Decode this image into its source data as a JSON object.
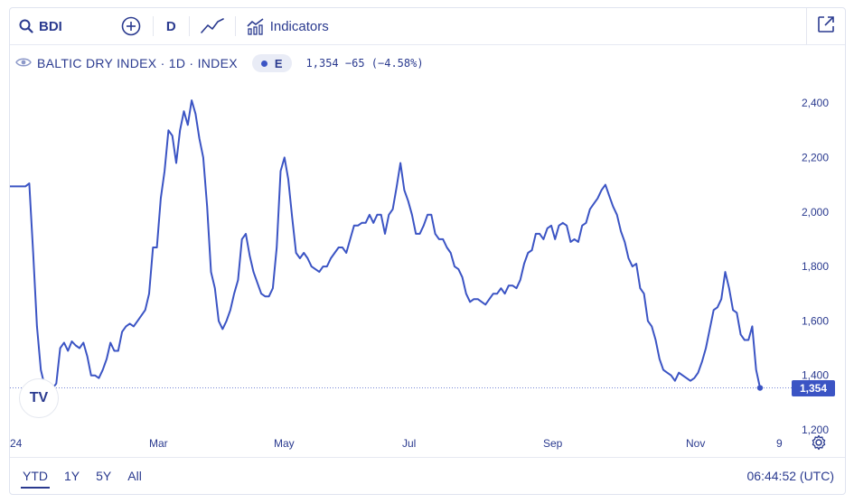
{
  "toolbar": {
    "symbol": "BDI",
    "interval": "D",
    "indicators_label": "Indicators"
  },
  "legend": {
    "title": "BALTIC DRY INDEX · 1D · INDEX",
    "exchange_badge": "E",
    "quote": "1,354 −65 (−4.58%)"
  },
  "price_tag": "1,354",
  "logo_text": "TV",
  "bottom": {
    "ranges": [
      "YTD",
      "1Y",
      "5Y",
      "All"
    ],
    "active_range": "YTD",
    "clock": "06:44:52 (UTC)"
  },
  "colors": {
    "line": "#3b54c4",
    "text": "#2a3a8f"
  },
  "chart_data": {
    "type": "line",
    "series_name": "BALTIC DRY INDEX",
    "x_ticks": [
      "24",
      "Mar",
      "May",
      "Jul",
      "Sep",
      "Nov",
      "9"
    ],
    "y_ticks": [
      1200,
      1400,
      1600,
      1800,
      2000,
      2200,
      2400
    ],
    "y_tick_labels": [
      "1,200",
      "1,400",
      "1,600",
      "1,800",
      "2,000",
      "2,200",
      "2,400"
    ],
    "ylim": [
      1190,
      2490
    ],
    "last_value": 1354,
    "values": [
      2094,
      2094,
      2094,
      2094,
      2094,
      2105,
      1850,
      1580,
      1420,
      1360,
      1340,
      1352,
      1370,
      1500,
      1520,
      1490,
      1525,
      1510,
      1500,
      1520,
      1470,
      1400,
      1400,
      1390,
      1420,
      1460,
      1520,
      1490,
      1490,
      1560,
      1580,
      1590,
      1580,
      1600,
      1620,
      1640,
      1700,
      1870,
      1870,
      2050,
      2150,
      2300,
      2280,
      2180,
      2300,
      2370,
      2320,
      2410,
      2360,
      2270,
      2200,
      2020,
      1780,
      1720,
      1600,
      1570,
      1600,
      1640,
      1700,
      1750,
      1900,
      1920,
      1840,
      1780,
      1740,
      1700,
      1690,
      1690,
      1720,
      1870,
      2150,
      2200,
      2120,
      1980,
      1850,
      1830,
      1850,
      1830,
      1800,
      1790,
      1780,
      1800,
      1800,
      1830,
      1850,
      1870,
      1870,
      1850,
      1900,
      1950,
      1950,
      1960,
      1960,
      1990,
      1960,
      1990,
      1990,
      1920,
      1990,
      2010,
      2090,
      2180,
      2080,
      2040,
      1990,
      1920,
      1920,
      1950,
      1990,
      1990,
      1920,
      1900,
      1900,
      1870,
      1850,
      1800,
      1790,
      1760,
      1700,
      1670,
      1680,
      1680,
      1670,
      1660,
      1680,
      1700,
      1700,
      1720,
      1700,
      1730,
      1730,
      1720,
      1750,
      1810,
      1850,
      1860,
      1920,
      1920,
      1900,
      1940,
      1950,
      1900,
      1950,
      1960,
      1950,
      1890,
      1900,
      1890,
      1950,
      1960,
      2010,
      2030,
      2050,
      2080,
      2100,
      2060,
      2020,
      1990,
      1930,
      1890,
      1830,
      1800,
      1810,
      1720,
      1700,
      1600,
      1580,
      1530,
      1460,
      1420,
      1410,
      1400,
      1380,
      1410,
      1400,
      1390,
      1380,
      1390,
      1410,
      1450,
      1500,
      1570,
      1640,
      1650,
      1680,
      1780,
      1720,
      1640,
      1630,
      1550,
      1530,
      1530,
      1580,
      1420,
      1354
    ]
  }
}
